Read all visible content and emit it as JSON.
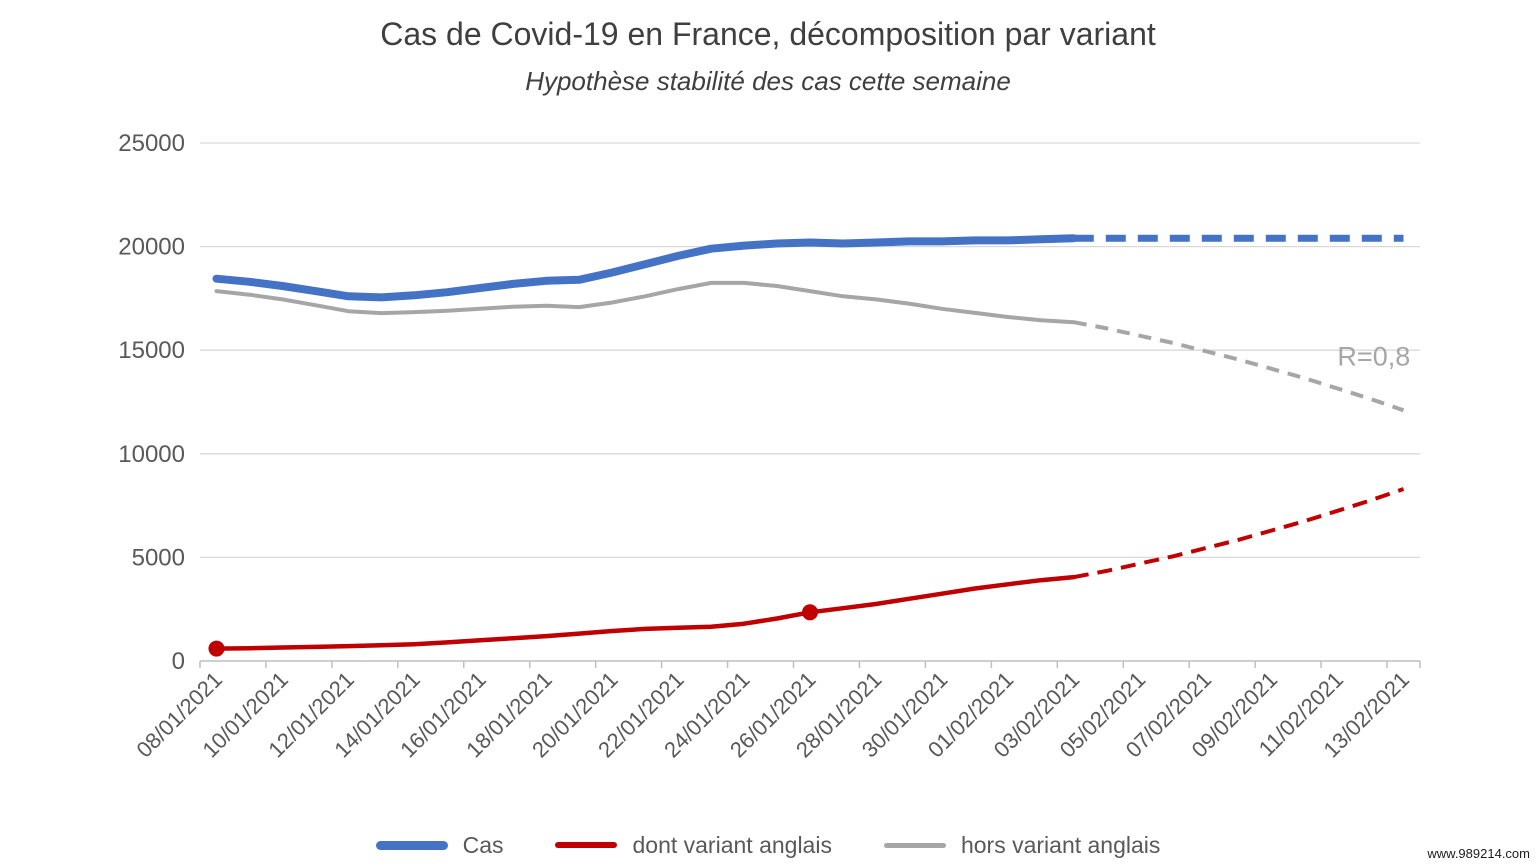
{
  "page": {
    "background": "#ffffff",
    "watermark": "www.989214.com"
  },
  "header": {
    "title": "Cas de Covid-19 en France, décomposition par variant",
    "subtitle": "Hypothèse stabilité des cas cette semaine"
  },
  "colors": {
    "grid": "#d9d9d9",
    "axis": "#bfbfbf",
    "tick_label": "#595959",
    "title_text": "#3f3f3f",
    "annotation_text": "#a6a6a6"
  },
  "chart_data": {
    "type": "line",
    "title": "Cas de Covid-19 en France, décomposition par variant",
    "subtitle": "Hypothèse stabilité des cas cette semaine",
    "xlabel": "",
    "ylabel": "",
    "ylim": [
      0,
      25000
    ],
    "grid": "horizontal",
    "legend_position": "bottom",
    "x_tick_labels": [
      "08/01/2021",
      "10/01/2021",
      "12/01/2021",
      "14/01/2021",
      "16/01/2021",
      "18/01/2021",
      "20/01/2021",
      "22/01/2021",
      "24/01/2021",
      "26/01/2021",
      "28/01/2021",
      "30/01/2021",
      "01/02/2021",
      "03/02/2021",
      "05/02/2021",
      "07/02/2021",
      "09/02/2021",
      "11/02/2021",
      "13/02/2021"
    ],
    "x_days_total": 37,
    "x_label_every_days": 2,
    "y_ticks": [
      0,
      5000,
      10000,
      15000,
      20000,
      25000
    ],
    "forecast_start_day": 26,
    "forecast_start_date": "03/02/2021",
    "series": [
      {
        "name": "Cas",
        "color": "#4472c4",
        "line_width": 8,
        "dash": "20 12",
        "marker_days": [],
        "values": [
          18450,
          18300,
          18100,
          17850,
          17600,
          17550,
          17650,
          17800,
          18000,
          18200,
          18350,
          18400,
          18750,
          19150,
          19550,
          19900,
          20050,
          20150,
          20200,
          20150,
          20200,
          20250,
          20250,
          20300,
          20300,
          20350,
          20400,
          20400,
          20400,
          20400,
          20400,
          20400,
          20400,
          20400,
          20400,
          20400,
          20400
        ]
      },
      {
        "name": "dont variant anglais",
        "color": "#c00000",
        "line_width": 4.5,
        "dash": "15 9",
        "marker_days": [
          0,
          18
        ],
        "values": [
          600,
          620,
          650,
          680,
          720,
          760,
          810,
          900,
          1000,
          1100,
          1200,
          1320,
          1450,
          1550,
          1600,
          1650,
          1800,
          2050,
          2350,
          2550,
          2750,
          3000,
          3250,
          3500,
          3700,
          3900,
          4050,
          4350,
          4700,
          5050,
          5450,
          5850,
          6300,
          6750,
          7250,
          7750,
          8300
        ]
      },
      {
        "name": "hors variant anglais",
        "color": "#a6a6a6",
        "line_width": 4,
        "dash": "13 9",
        "marker_days": [],
        "values": [
          17850,
          17680,
          17450,
          17170,
          16880,
          16790,
          16840,
          16900,
          17000,
          17100,
          17150,
          17080,
          17300,
          17600,
          17950,
          18250,
          18250,
          18100,
          17850,
          17600,
          17450,
          17250,
          17000,
          16800,
          16600,
          16450,
          16350,
          16050,
          15700,
          15350,
          14950,
          14550,
          14100,
          13650,
          13150,
          12650,
          12100
        ]
      }
    ],
    "annotation": {
      "text": "R=0,8",
      "day": 35.1,
      "value": 14700
    }
  }
}
